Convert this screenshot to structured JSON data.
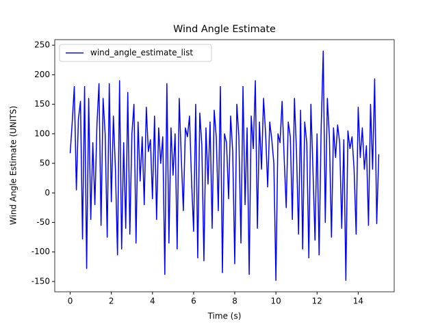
{
  "chart_data": {
    "type": "line",
    "title": "Wind Angle Estimate",
    "x_label": "Time (s)",
    "y_label": "Wind Angle Estimate (UNITS)",
    "x": [
      0,
      0.1,
      0.2,
      0.3,
      0.4,
      0.5,
      0.6,
      0.7,
      0.8,
      0.9,
      1,
      1.1,
      1.2,
      1.3,
      1.4,
      1.5,
      1.6,
      1.7,
      1.8,
      1.9,
      2,
      2.1,
      2.2,
      2.3,
      2.4,
      2.5,
      2.6,
      2.7,
      2.8,
      2.9,
      3,
      3.1,
      3.2,
      3.3,
      3.4,
      3.5,
      3.6,
      3.7,
      3.8,
      3.9,
      4,
      4.1,
      4.2,
      4.3,
      4.4,
      4.5,
      4.6,
      4.7,
      4.8,
      4.9,
      5,
      5.1,
      5.2,
      5.3,
      5.4,
      5.5,
      5.6,
      5.7,
      5.8,
      5.9,
      6,
      6.1,
      6.2,
      6.3,
      6.4,
      6.5,
      6.6,
      6.7,
      6.8,
      6.9,
      7,
      7.1,
      7.2,
      7.3,
      7.4,
      7.5,
      7.6,
      7.7,
      7.8,
      7.9,
      8,
      8.1,
      8.2,
      8.3,
      8.4,
      8.5,
      8.6,
      8.7,
      8.8,
      8.9,
      9,
      9.1,
      9.2,
      9.3,
      9.4,
      9.5,
      9.6,
      9.7,
      9.8,
      9.9,
      10,
      10.1,
      10.2,
      10.3,
      10.4,
      10.5,
      10.6,
      10.7,
      10.8,
      10.9,
      11,
      11.1,
      11.2,
      11.3,
      11.4,
      11.5,
      11.6,
      11.7,
      11.8,
      11.9,
      12,
      12.1,
      12.2,
      12.3,
      12.4,
      12.5,
      12.6,
      12.7,
      12.8,
      12.9,
      13,
      13.1,
      13.2,
      13.3,
      13.4,
      13.5,
      13.6,
      13.7,
      13.8,
      13.9,
      14,
      14.1,
      14.2,
      14.3,
      14.4,
      14.5,
      14.6,
      14.7,
      14.8,
      14.9,
      15
    ],
    "series": [
      {
        "name": "wind_angle_estimate_list",
        "color": "#0000ff",
        "values": [
          67,
          120,
          180,
          5,
          125,
          155,
          -78,
          180,
          -128,
          160,
          -45,
          85,
          -20,
          115,
          185,
          -55,
          160,
          100,
          -75,
          185,
          -15,
          130,
          40,
          -105,
          190,
          -95,
          85,
          -60,
          170,
          -70,
          100,
          150,
          -85,
          120,
          20,
          95,
          -20,
          145,
          70,
          90,
          -10,
          130,
          -45,
          110,
          50,
          95,
          -138,
          185,
          -85,
          110,
          30,
          100,
          -95,
          160,
          60,
          -30,
          110,
          95,
          130,
          20,
          -65,
          150,
          -110,
          135,
          80,
          -115,
          110,
          15,
          120,
          -60,
          140,
          95,
          -30,
          180,
          -135,
          100,
          85,
          -10,
          130,
          70,
          -120,
          150,
          95,
          -85,
          180,
          -20,
          110,
          -138,
          130,
          75,
          190,
          -60,
          120,
          40,
          160,
          100,
          10,
          120,
          90,
          50,
          -148,
          100,
          85,
          155,
          60,
          -25,
          120,
          95,
          -45,
          160,
          70,
          -70,
          140,
          -95,
          120,
          85,
          -110,
          150,
          40,
          -80,
          100,
          -105,
          110,
          240,
          -50,
          160,
          95,
          -75,
          110,
          60,
          115,
          85,
          -60,
          90,
          -148,
          105,
          75,
          95,
          40,
          -70,
          145,
          60,
          110,
          40,
          80,
          -55,
          150,
          40,
          193,
          -52,
          65
        ]
      }
    ],
    "xlim": [
      -0.75,
      15.75
    ],
    "ylim": [
      -167.4,
      259.4
    ],
    "xticks": [
      0,
      2,
      4,
      6,
      8,
      10,
      12,
      14
    ],
    "yticks": [
      -150,
      -100,
      -50,
      0,
      50,
      100,
      150,
      200,
      250
    ],
    "legend": "upper left"
  }
}
